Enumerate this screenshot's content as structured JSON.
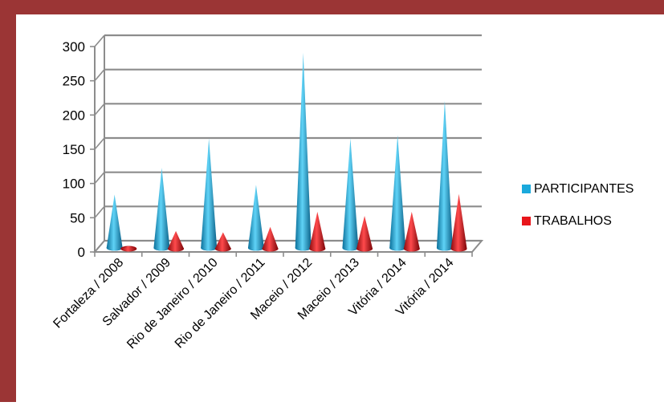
{
  "chart_data": {
    "type": "bar",
    "style": "3d-cone",
    "categories": [
      "Fortaleza / 2008",
      "Salvador / 2009",
      "Rio de Janeiro / 2010",
      "Rio de Janeiro / 2011",
      "Maceio / 2012",
      "Maceio / 2013",
      "Vitória / 2014",
      "Vitória / 2014"
    ],
    "series": [
      {
        "name": "PARTICIPANTES",
        "color": "#1aa9dc",
        "values": [
          78,
          117,
          160,
          92,
          285,
          160,
          165,
          215
        ]
      },
      {
        "name": "TRABALHOS",
        "color": "#e8161b",
        "values": [
          4,
          26,
          24,
          32,
          54,
          48,
          54,
          80
        ]
      }
    ],
    "ylim": [
      0,
      300
    ],
    "yticks": [
      "0",
      "50",
      "100",
      "150",
      "200",
      "250",
      "300"
    ],
    "grid": true,
    "legend_position": "right",
    "frame_color": "#9b3535"
  }
}
